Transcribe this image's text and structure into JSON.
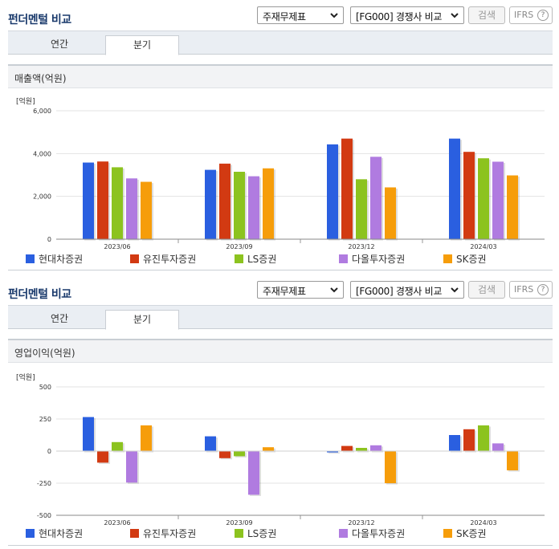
{
  "colors": {
    "series": [
      "#2a5fe0",
      "#d23a12",
      "#8cc31f",
      "#b07be0",
      "#f69d0a"
    ],
    "title": "#1a3a6c"
  },
  "icons": [
    "chevron-down-icon",
    "help-circle-icon"
  ],
  "panels": [
    {
      "title": "펀더멘털 비교",
      "select_statement": "주재무제표",
      "select_compare": "[FG000] 경쟁사 비교",
      "search_label": "검색",
      "ifrs_label": "IFRS",
      "help_label": "?",
      "tabs": [
        {
          "label": "연간",
          "active": false
        },
        {
          "label": "분기",
          "active": true
        }
      ],
      "chart_title": "매출액(억원)",
      "legend": [
        "현대차증권",
        "유진투자증권",
        "LS증권",
        "다올투자증권",
        "SK증권"
      ]
    },
    {
      "title": "펀더멘털 비교",
      "select_statement": "주재무제표",
      "select_compare": "[FG000] 경쟁사 비교",
      "search_label": "검색",
      "ifrs_label": "IFRS",
      "help_label": "?",
      "tabs": [
        {
          "label": "연간",
          "active": false
        },
        {
          "label": "분기",
          "active": true
        }
      ],
      "chart_title": "영업이익(억원)",
      "legend": [
        "현대차증권",
        "유진투자증권",
        "LS증권",
        "다올투자증권",
        "SK증권"
      ]
    }
  ],
  "chart_data": [
    {
      "type": "bar",
      "unit_label": "[억원]",
      "categories": [
        "2023/06",
        "2023/09",
        "2023/12",
        "2024/03"
      ],
      "ylim": [
        0,
        6000
      ],
      "yticks": [
        0,
        2000,
        4000,
        6000
      ],
      "ytick_labels": [
        "0",
        "2,000",
        "4,000",
        "6,000"
      ],
      "legend_position": "bottom",
      "series": [
        {
          "name": "현대차증권",
          "values": [
            3580,
            3240,
            4430,
            4700
          ]
        },
        {
          "name": "유진투자증권",
          "values": [
            3630,
            3530,
            4700,
            4080
          ]
        },
        {
          "name": "LS증권",
          "values": [
            3360,
            3150,
            2800,
            3780
          ]
        },
        {
          "name": "다올투자증권",
          "values": [
            2840,
            2940,
            3850,
            3620
          ]
        },
        {
          "name": "SK증권",
          "values": [
            2680,
            3310,
            2420,
            2980
          ]
        }
      ]
    },
    {
      "type": "bar",
      "unit_label": "[억원]",
      "categories": [
        "2023/06",
        "2023/09",
        "2023/12",
        "2024/03"
      ],
      "ylim": [
        -500,
        500
      ],
      "yticks": [
        -500,
        -250,
        0,
        250,
        500
      ],
      "ytick_labels": [
        "-500",
        "-250",
        "0",
        "250",
        "500"
      ],
      "legend_position": "bottom",
      "series": [
        {
          "name": "현대차증권",
          "values": [
            265,
            115,
            -10,
            125
          ]
        },
        {
          "name": "유진투자증권",
          "values": [
            -90,
            -55,
            40,
            170
          ]
        },
        {
          "name": "LS증권",
          "values": [
            70,
            -40,
            25,
            200
          ]
        },
        {
          "name": "다올투자증권",
          "values": [
            -245,
            -340,
            45,
            60
          ]
        },
        {
          "name": "SK증권",
          "values": [
            200,
            30,
            -250,
            -150
          ]
        }
      ]
    }
  ]
}
